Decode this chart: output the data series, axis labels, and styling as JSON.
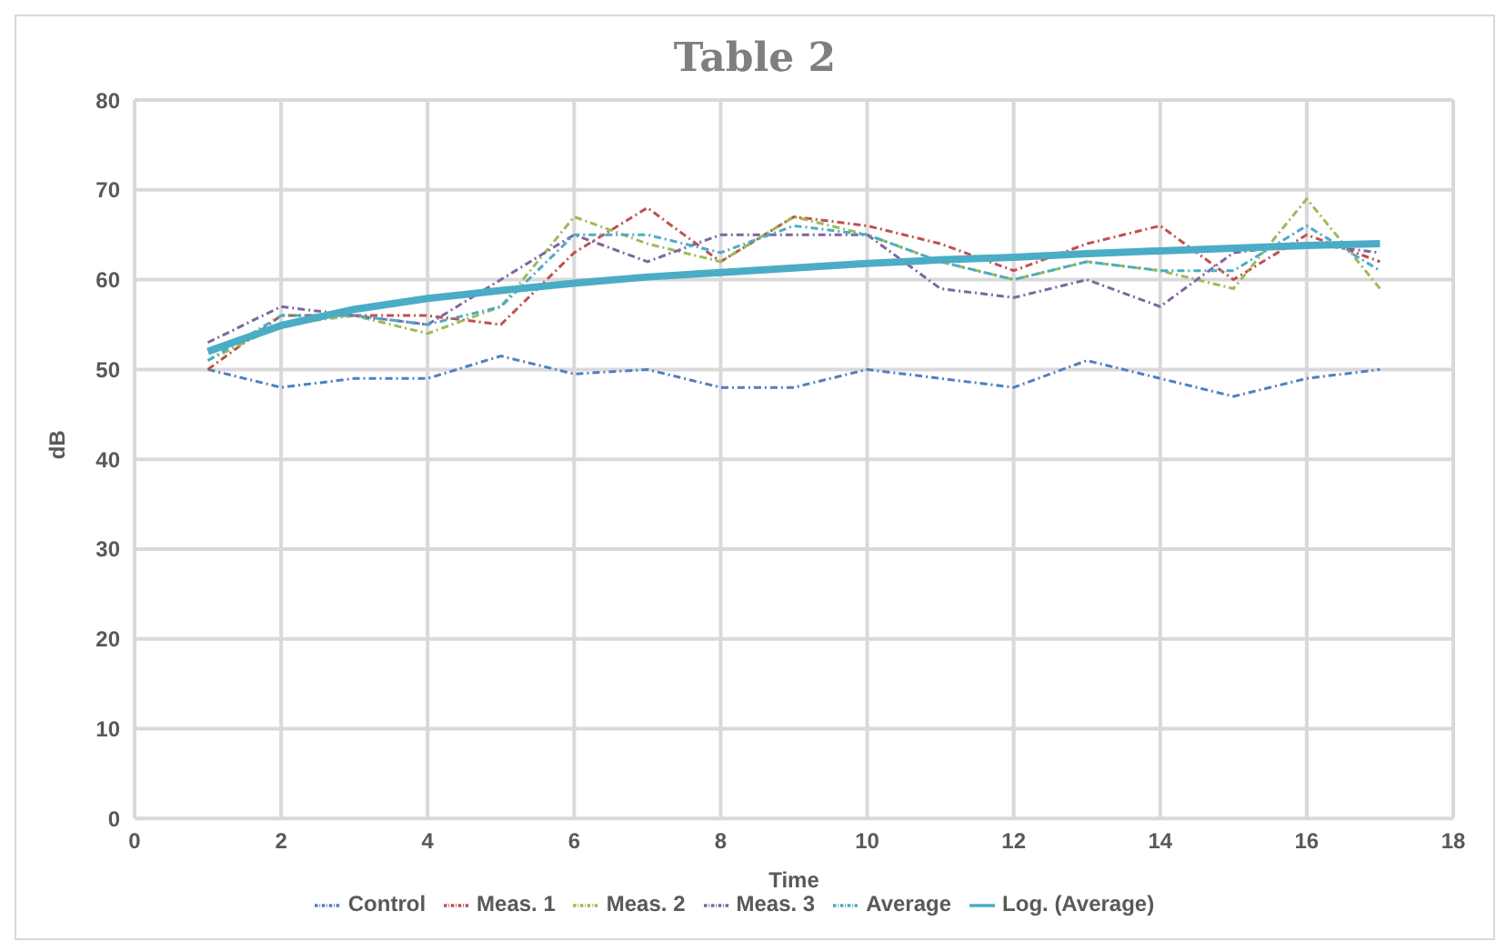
{
  "chart_data": {
    "type": "line",
    "title": "Table 2",
    "xlabel": "Time",
    "ylabel": "dB",
    "x": [
      1,
      2,
      3,
      4,
      5,
      6,
      7,
      8,
      9,
      10,
      11,
      12,
      13,
      14,
      15,
      16,
      17
    ],
    "xlim": [
      0,
      18
    ],
    "xticks": [
      0,
      2,
      4,
      6,
      8,
      10,
      12,
      14,
      16,
      18
    ],
    "ylim": [
      0,
      80
    ],
    "yticks": [
      0,
      10,
      20,
      30,
      40,
      50,
      60,
      70,
      80
    ],
    "grid": true,
    "legend": "bottom",
    "marker": "none",
    "line_style": "dashed",
    "series": [
      {
        "name": "Control",
        "color": "#4f81bd",
        "values": [
          50,
          48,
          49,
          49,
          51.5,
          49.5,
          50,
          48,
          48,
          50,
          49,
          48,
          51,
          49,
          47,
          49,
          50
        ]
      },
      {
        "name": "Meas. 1",
        "color": "#c0504d",
        "values": [
          50,
          56,
          56,
          56,
          55,
          63,
          68,
          62,
          67,
          66,
          64,
          61,
          64,
          66,
          60,
          65,
          62
        ]
      },
      {
        "name": "Meas. 2",
        "color": "#9bbb59",
        "values": [
          51,
          55,
          56,
          54,
          57,
          67,
          64,
          62,
          67,
          65,
          62,
          60,
          62,
          61,
          59,
          69,
          59
        ]
      },
      {
        "name": "Meas. 3",
        "color": "#8064a2",
        "values": [
          53,
          57,
          56,
          55,
          60,
          65,
          62,
          65,
          65,
          65,
          59,
          58,
          60,
          57,
          63,
          64,
          63
        ]
      },
      {
        "name": "Average",
        "color": "#4bacc6",
        "values": [
          51,
          56,
          56,
          55,
          57,
          65,
          65,
          63,
          66,
          65,
          62,
          60,
          62,
          61,
          61,
          66,
          61
        ]
      },
      {
        "name": "Log. (Average)",
        "color": "#4bacc6",
        "line_style": "solid",
        "values": [
          52.0,
          54.9,
          56.7,
          57.9,
          58.8,
          59.6,
          60.3,
          60.8,
          61.3,
          61.8,
          62.2,
          62.5,
          62.9,
          63.2,
          63.5,
          63.8,
          64.0
        ]
      }
    ]
  }
}
